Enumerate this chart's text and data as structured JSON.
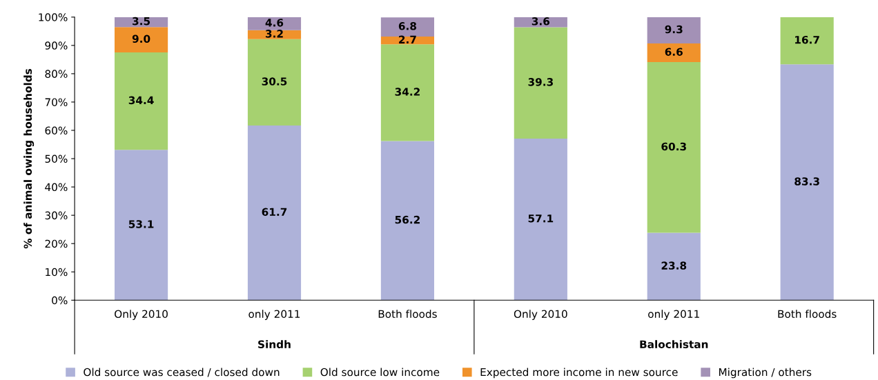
{
  "chart_data": {
    "type": "bar",
    "stacked": true,
    "ylabel": "% of animal owing households",
    "categories": [
      "Only 2010",
      "only 2011",
      "Both floods",
      "Only 2010",
      "only 2011",
      "Both floods"
    ],
    "annotations": [
      "Sindh",
      "Balochistan"
    ],
    "series": [
      {
        "name": "Old source was ceased / closed down",
        "color": "#aeb2d9",
        "values": [
          53.1,
          61.7,
          56.2,
          57.1,
          23.8,
          83.3
        ],
        "value_labels": [
          "53.1",
          "61.7",
          "56.2",
          "57.1",
          "23.8",
          "83.3"
        ]
      },
      {
        "name": "Old source low income",
        "color": "#a6d170",
        "values": [
          34.4,
          30.5,
          34.2,
          39.3,
          60.3,
          16.7
        ],
        "value_labels": [
          "34.4",
          "30.5",
          "34.2",
          "39.3",
          "60.3",
          "16.7"
        ]
      },
      {
        "name": "Expected more income in new source",
        "color": "#f0922b",
        "values": [
          9.0,
          3.2,
          2.7,
          null,
          6.6,
          null
        ],
        "value_labels": [
          "9.0",
          "3.2",
          "2.7",
          null,
          "6.6",
          null
        ]
      },
      {
        "name": "Migration / others",
        "color": "#a391b6",
        "values": [
          3.5,
          4.6,
          6.8,
          3.6,
          9.3,
          null
        ],
        "value_labels": [
          "3.5",
          "4.6",
          "6.8",
          "3.6",
          "9.3",
          null
        ]
      }
    ],
    "ylim": [
      0,
      100
    ],
    "yticks": [
      {
        "value": 0,
        "label": "0%"
      },
      {
        "value": 10,
        "label": "10%"
      },
      {
        "value": 20,
        "label": "20%"
      },
      {
        "value": 30,
        "label": "30%"
      },
      {
        "value": 40,
        "label": "40%"
      },
      {
        "value": 50,
        "label": "50%"
      },
      {
        "value": 60,
        "label": "60%"
      },
      {
        "value": 70,
        "label": "70%"
      },
      {
        "value": 80,
        "label": "80%"
      },
      {
        "value": 90,
        "label": "90%"
      },
      {
        "value": 100,
        "label": "100%"
      }
    ],
    "grid": false,
    "legend": "bottom"
  }
}
